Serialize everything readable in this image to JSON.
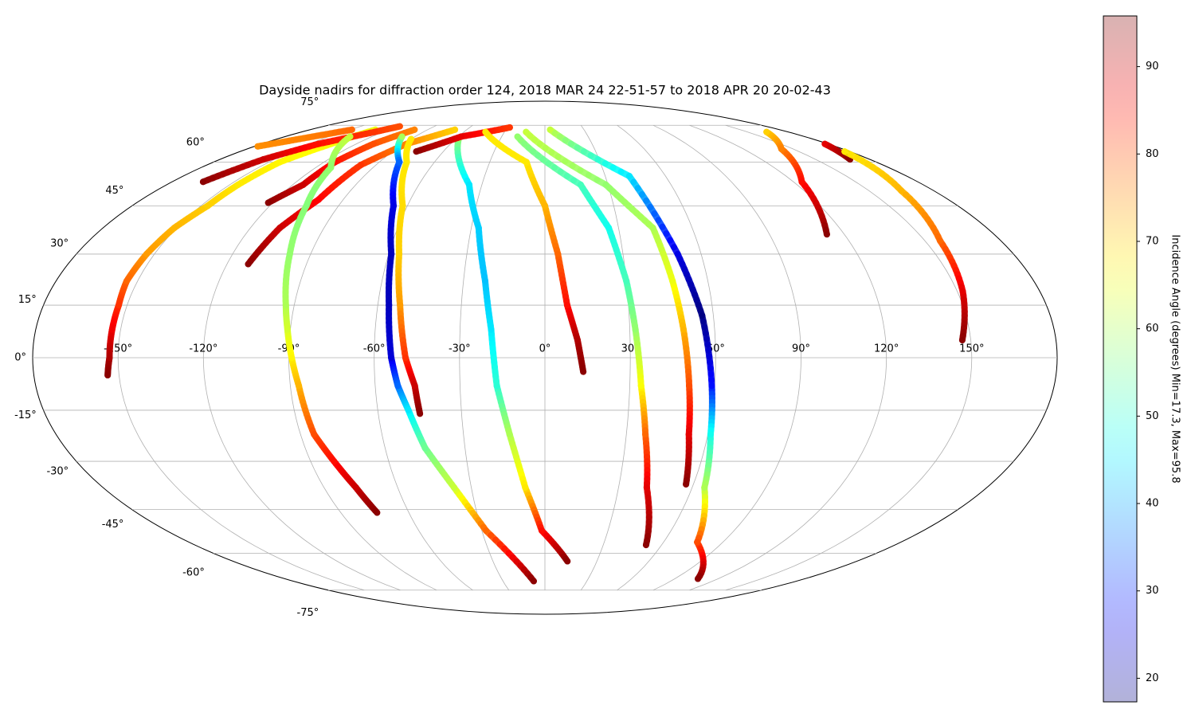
{
  "chart_data": {
    "type": "scatter",
    "projection": "mollweide",
    "title": "Dayside nadirs for diffraction order 124, 2018 MAR 24 22-51-57 to 2018 APR 20 20-02-43",
    "grid": true,
    "xticks": [
      {
        "value": -150,
        "label": "-150°"
      },
      {
        "value": -120,
        "label": "-120°"
      },
      {
        "value": -90,
        "label": "-90°"
      },
      {
        "value": -60,
        "label": "-60°"
      },
      {
        "value": -30,
        "label": "-30°"
      },
      {
        "value": 0,
        "label": "0°"
      },
      {
        "value": 30,
        "label": "30°"
      },
      {
        "value": 60,
        "label": "60°"
      },
      {
        "value": 90,
        "label": "90°"
      },
      {
        "value": 120,
        "label": "120°"
      },
      {
        "value": 150,
        "label": "150°"
      }
    ],
    "yticks": [
      {
        "value": 75,
        "label": "75°"
      },
      {
        "value": 60,
        "label": "60°"
      },
      {
        "value": 45,
        "label": "45°"
      },
      {
        "value": 30,
        "label": "30°"
      },
      {
        "value": 15,
        "label": "15°"
      },
      {
        "value": 0,
        "label": "0°"
      },
      {
        "value": -15,
        "label": "-15°"
      },
      {
        "value": -30,
        "label": "-30°"
      },
      {
        "value": -45,
        "label": "-45°"
      },
      {
        "value": -60,
        "label": "-60°"
      },
      {
        "value": -75,
        "label": "-75°"
      }
    ],
    "colorbar": {
      "label": "Incidence Angle (degrees) Min=17.3, Max=95.8",
      "colormap": "jet",
      "lim": [
        17.3,
        95.8
      ],
      "ticks": [
        20,
        30,
        40,
        50,
        60,
        70,
        80,
        90
      ]
    },
    "series": [
      {
        "x": [
          -130,
          -136,
          -144,
          -146,
          -147,
          -151,
          -153,
          -154,
          -153,
          -153,
          -153,
          -154
        ],
        "y": [
          73,
          67,
          60,
          52,
          45,
          38,
          30,
          22,
          15,
          8,
          0,
          -5
        ],
        "values": [
          65,
          66,
          67,
          68,
          70,
          72,
          74,
          78,
          82,
          87,
          92,
          95
        ]
      },
      {
        "x": [
          -165,
          -156,
          -144,
          -126,
          -118
        ],
        "y": [
          53,
          61,
          67,
          72,
          74.5
        ],
        "values": [
          95,
          90,
          85,
          82,
          80
        ]
      },
      {
        "x": [
          -178,
          -165,
          -148
        ],
        "y": [
          66,
          69,
          73
        ],
        "values": [
          75,
          76,
          78
        ]
      },
      {
        "x": [
          -122,
          -115,
          -114,
          -109,
          -100
        ],
        "y": [
          46,
          52,
          60,
          67,
          73
        ],
        "values": [
          95,
          90,
          85,
          80,
          76
        ]
      },
      {
        "x": [
          -112,
          -108,
          -101,
          -98,
          -88,
          -69
        ],
        "y": [
          27,
          38,
          47,
          59,
          67,
          73
        ],
        "values": [
          95,
          90,
          86,
          82,
          76,
          70
        ]
      },
      {
        "x": [
          -135,
          -112,
          -104,
          -98,
          -93,
          -91,
          -89,
          -87,
          -85,
          -81,
          -77,
          -74
        ],
        "y": [
          70,
          58,
          45,
          30,
          15,
          8,
          0,
          -8,
          -22,
          -30,
          -38,
          -46
        ],
        "values": [
          62,
          58,
          57,
          58,
          60,
          63,
          67,
          72,
          80,
          85,
          90,
          95
        ]
      },
      {
        "x": [
          -99,
          -79,
          -66,
          -59,
          -56,
          -54,
          -52,
          -49,
          -45,
          -37,
          -28,
          -8
        ],
        "y": [
          70,
          60,
          45,
          30,
          15,
          0,
          -8,
          -15,
          -26,
          -38,
          -52,
          -71
        ],
        "values": [
          60,
          35,
          25,
          22,
          22,
          24,
          35,
          45,
          55,
          62,
          78,
          95
        ]
      },
      {
        "x": [
          -90,
          -75,
          -62,
          -56,
          -52,
          -49,
          -46,
          -45
        ],
        "y": [
          69,
          60,
          45,
          30,
          15,
          0,
          -8,
          -16
        ],
        "values": [
          68,
          68,
          69,
          70,
          74,
          82,
          90,
          95
        ]
      },
      {
        "x": [
          -58,
          -36,
          -27,
          -22,
          -19,
          -17,
          -13,
          -8,
          -1.5,
          13
        ],
        "y": [
          69,
          52,
          38,
          22,
          8,
          -8,
          -22,
          -38,
          -52,
          -63
        ],
        "values": [
          58,
          45,
          43,
          42,
          45,
          50,
          60,
          68,
          85,
          95
        ]
      },
      {
        "x": [
          -76,
          -58,
          -28
        ],
        "y": [
          64,
          70,
          74
        ],
        "values": [
          95,
          88,
          82
        ]
      },
      {
        "x": [
          -44,
          -10,
          0,
          5,
          8,
          11.5,
          13.5
        ],
        "y": [
          72,
          60,
          45,
          30,
          15,
          5,
          -4
        ],
        "values": [
          68,
          68,
          72,
          78,
          85,
          92,
          95
        ]
      },
      {
        "x": [
          -19,
          17,
          26,
          30,
          32,
          34,
          37,
          41.5,
          52
        ],
        "y": [
          70,
          52,
          38,
          22,
          8,
          -8,
          -22,
          -38,
          -57
        ],
        "values": [
          58,
          52,
          48,
          52,
          58,
          66,
          78,
          88,
          95
        ]
      },
      {
        "x": [
          -14,
          29,
          44,
          47,
          49,
          51,
          53,
          57
        ],
        "y": [
          72,
          52,
          38,
          22,
          8,
          -8,
          -22,
          -37
        ],
        "values": [
          62,
          58,
          60,
          65,
          72,
          80,
          88,
          95
        ]
      },
      {
        "x": [
          4,
          42,
          51,
          56,
          59,
          61,
          65,
          77,
          106
        ],
        "y": [
          73,
          55,
          30,
          12,
          -8,
          -22,
          -38,
          -56,
          -70
        ],
        "values": [
          62,
          45,
          25,
          17.5,
          28,
          48,
          60,
          80,
          95
        ]
      },
      {
        "x": [
          164,
          143,
          124,
          113
        ],
        "y": [
          72,
          65,
          53,
          36
        ],
        "values": [
          70,
          76,
          85,
          95
        ]
      },
      {
        "x": [
          178,
          169
        ],
        "y": [
          67,
          61
        ],
        "values": [
          88,
          95
        ]
      },
      {
        "x": [
          177,
          165,
          156,
          152,
          147
        ],
        "y": [
          64,
          50,
          34,
          19,
          5
        ],
        "values": [
          68,
          72,
          78,
          88,
          95
        ]
      }
    ]
  }
}
